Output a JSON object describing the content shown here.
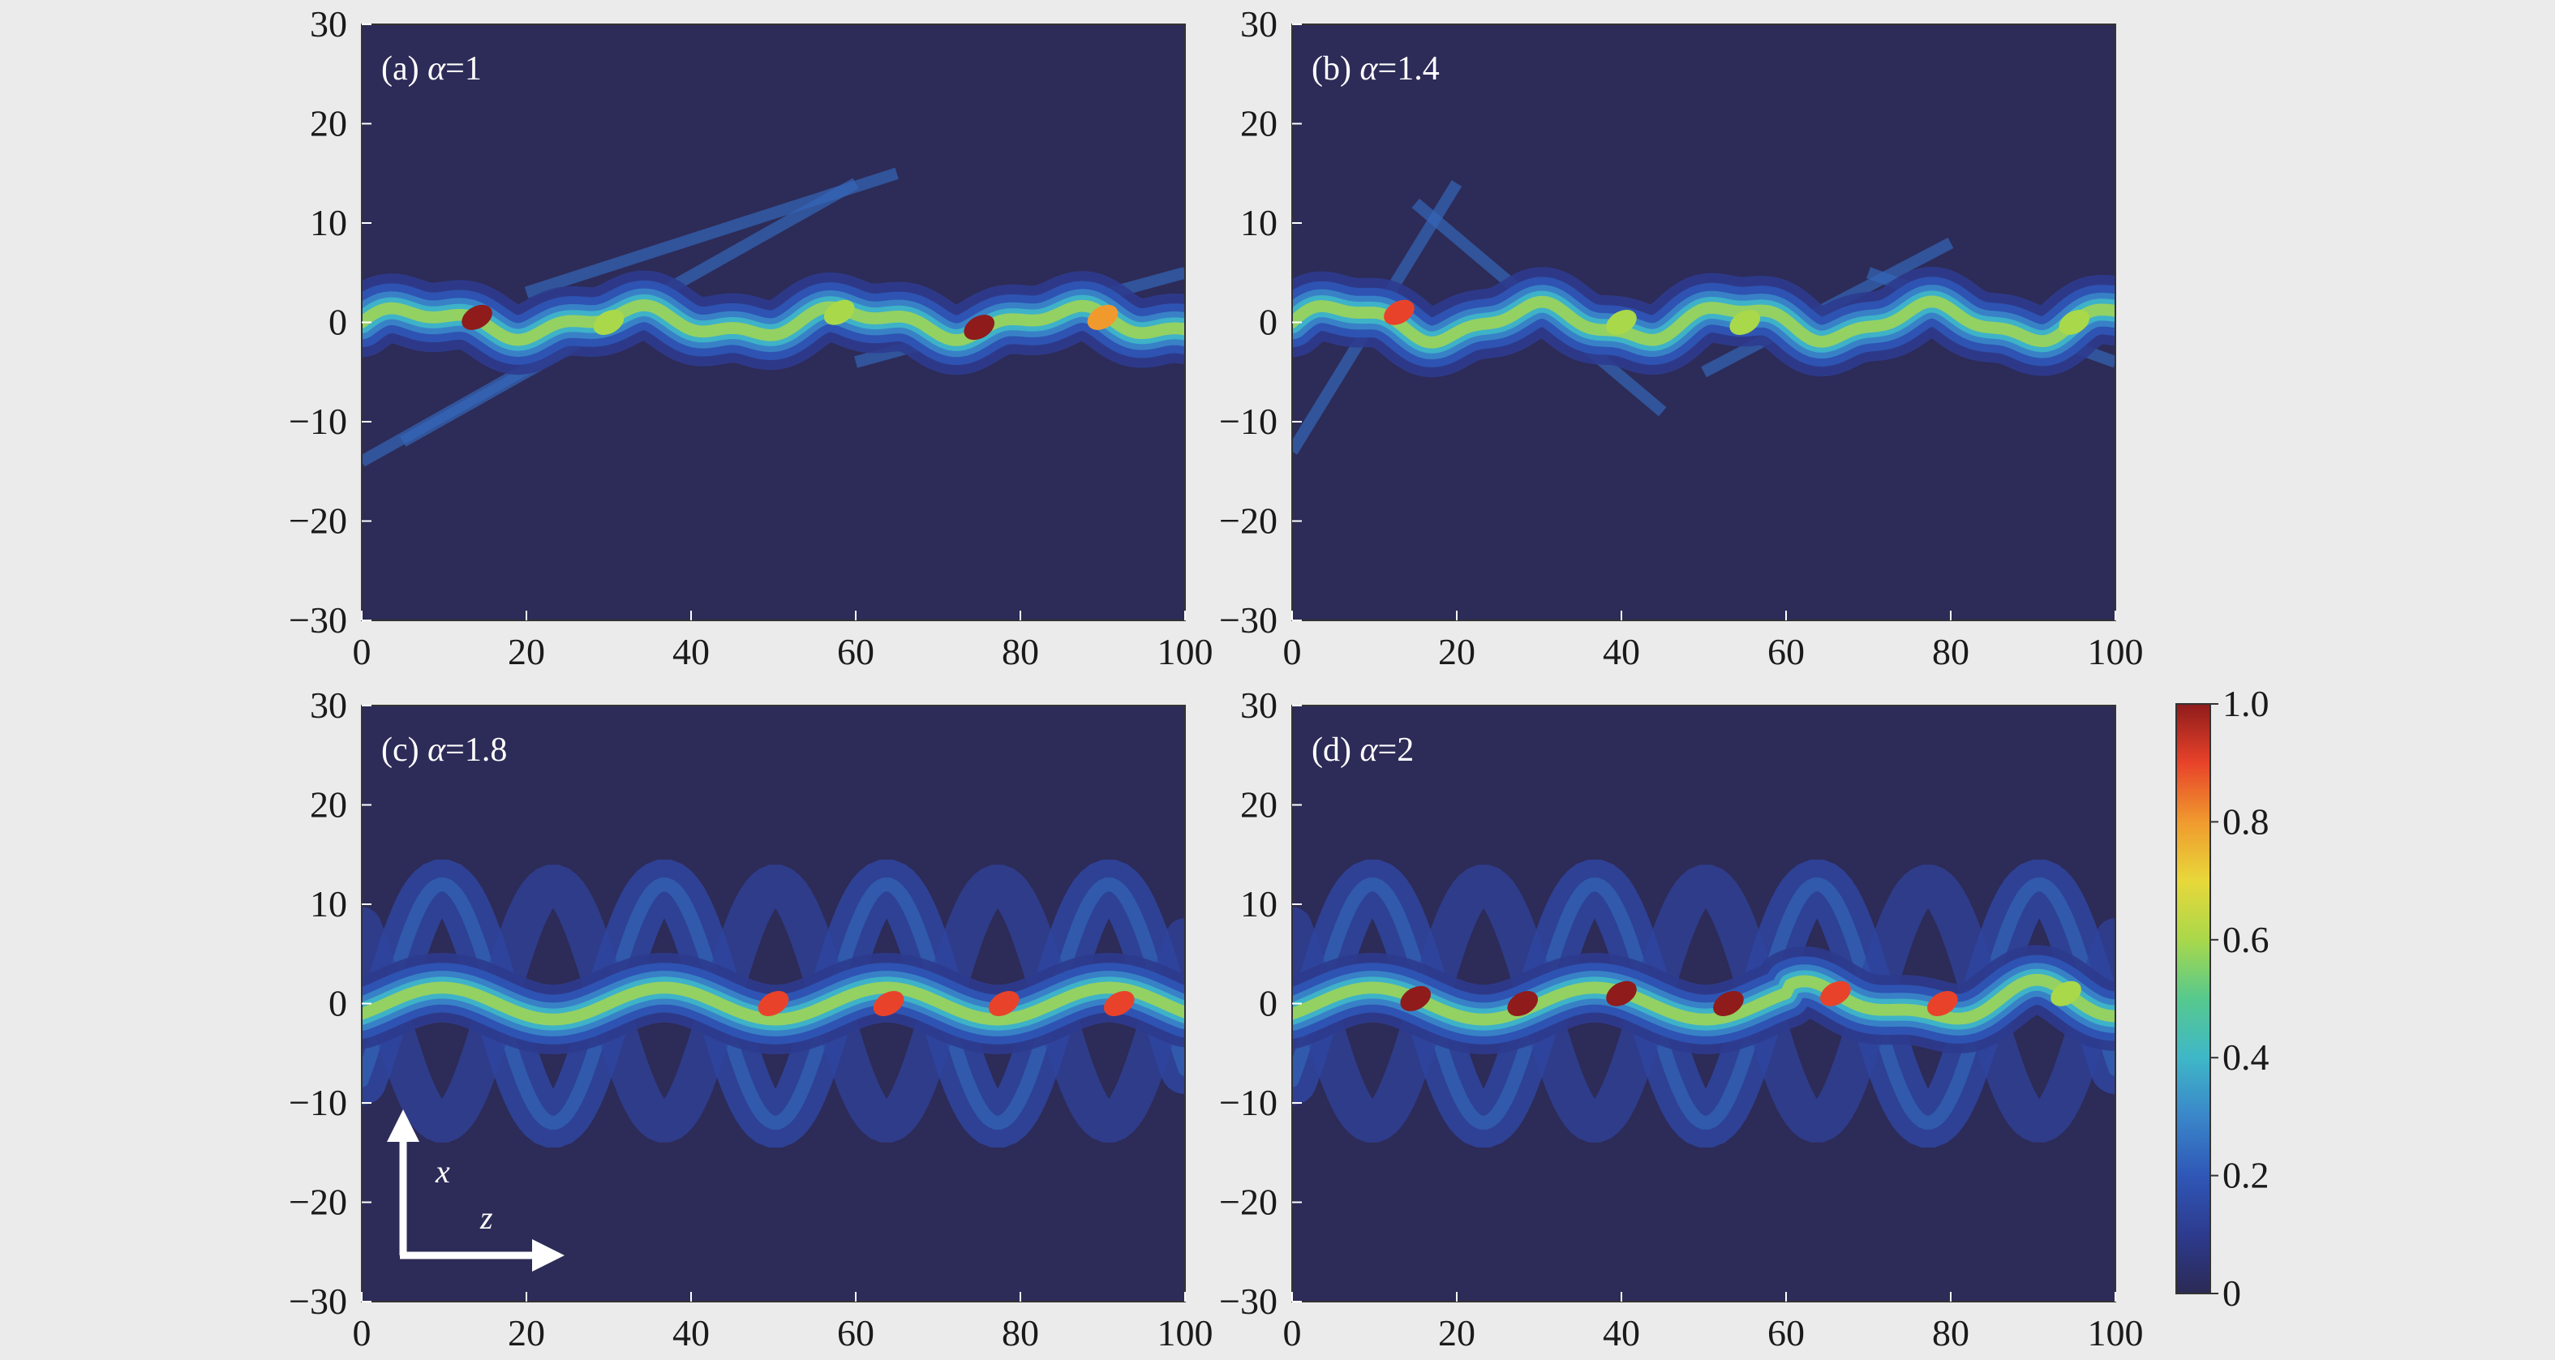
{
  "chart_data": [
    {
      "type": "heatmap",
      "panel_label": "(a) ",
      "alpha_symbol": "α",
      "alpha_value": "=1",
      "xlim": [
        0,
        100
      ],
      "ylim": [
        -30,
        30
      ],
      "xticks": [
        "0",
        "20",
        "40",
        "60",
        "80",
        "100"
      ],
      "yticks": [
        "30",
        "20",
        "10",
        "0",
        "−10",
        "−20",
        "−30"
      ],
      "beam_pattern": "wandering, low-amplitude oscillating beam confined near x≈0 with faint side beams",
      "peak_hotspots": [
        {
          "z": 14,
          "x": 0.5,
          "value": 0.95
        },
        {
          "z": 30,
          "x": 0,
          "value": 0.6
        },
        {
          "z": 58,
          "x": 1,
          "value": 0.6
        },
        {
          "z": 75,
          "x": -0.5,
          "value": 0.95
        },
        {
          "z": 90,
          "x": 0.5,
          "value": 0.8
        }
      ]
    },
    {
      "type": "heatmap",
      "panel_label": "(b) ",
      "alpha_symbol": "α",
      "alpha_value": "=1.4",
      "xlim": [
        0,
        100
      ],
      "ylim": [
        -30,
        30
      ],
      "xticks": [
        "0",
        "20",
        "40",
        "60",
        "80",
        "100"
      ],
      "yticks": [
        "30",
        "20",
        "10",
        "0",
        "−10",
        "−20",
        "−30"
      ],
      "beam_pattern": "oscillating beam around x≈0 with crossing side beams",
      "peak_hotspots": [
        {
          "z": 13,
          "x": 1,
          "value": 0.85
        },
        {
          "z": 40,
          "x": 0,
          "value": 0.6
        },
        {
          "z": 55,
          "x": 0,
          "value": 0.6
        },
        {
          "z": 95,
          "x": 0,
          "value": 0.6
        }
      ]
    },
    {
      "type": "heatmap",
      "panel_label": "(c) ",
      "alpha_symbol": "α",
      "alpha_value": "=1.8",
      "xlim": [
        0,
        100
      ],
      "ylim": [
        -30,
        30
      ],
      "xticks": [
        "0",
        "20",
        "40",
        "60",
        "80",
        "100"
      ],
      "yticks": [
        "30",
        "20",
        "10",
        "0",
        "−10",
        "−20",
        "−30"
      ],
      "beam_pattern": "periodic zigzag oscillation, period ≈ 27 in z, outer envelope ±12",
      "peak_hotspots": [
        {
          "z": 50,
          "x": 0,
          "value": 0.9
        },
        {
          "z": 64,
          "x": 0,
          "value": 0.9
        },
        {
          "z": 78,
          "x": 0,
          "value": 0.9
        },
        {
          "z": 92,
          "x": 0,
          "value": 0.9
        }
      ]
    },
    {
      "type": "heatmap",
      "panel_label": "(d) ",
      "alpha_symbol": "α",
      "alpha_value": "=2",
      "xlim": [
        0,
        100
      ],
      "ylim": [
        -30,
        30
      ],
      "xticks": [
        "0",
        "20",
        "40",
        "60",
        "80",
        "100"
      ],
      "yticks": [
        "30",
        "20",
        "10",
        "0",
        "−10",
        "−20",
        "−30"
      ],
      "beam_pattern": "periodic oscillation, period ≈ 27 in z, becoming irregular beyond z≈60",
      "peak_hotspots": [
        {
          "z": 15,
          "x": 0.5,
          "value": 0.95
        },
        {
          "z": 28,
          "x": 0,
          "value": 0.95
        },
        {
          "z": 40,
          "x": 1,
          "value": 0.95
        },
        {
          "z": 53,
          "x": 0,
          "value": 0.95
        },
        {
          "z": 66,
          "x": 1,
          "value": 0.9
        },
        {
          "z": 79,
          "x": 0,
          "value": 0.9
        },
        {
          "z": 94,
          "x": 1,
          "value": 0.6
        }
      ]
    }
  ],
  "colorbar": {
    "range": [
      0,
      1
    ],
    "tick_labels": [
      "1.0",
      "0.8",
      "0.6",
      "0.4",
      "0.2",
      "0"
    ],
    "colormap": [
      "#2b2a55",
      "#2d3b8e",
      "#2f57b7",
      "#3a86c9",
      "#3fb7c8",
      "#56c98e",
      "#a9d84a",
      "#e8d83a",
      "#f09a2e",
      "#e8432a",
      "#8f1b1b"
    ]
  },
  "direction_arrows": {
    "vertical_label": "x",
    "horizontal_label": "z"
  },
  "colors": {
    "plot_background": "#2d2b57",
    "figure_background": "#ebebeb",
    "arrow": "#ffffff"
  }
}
